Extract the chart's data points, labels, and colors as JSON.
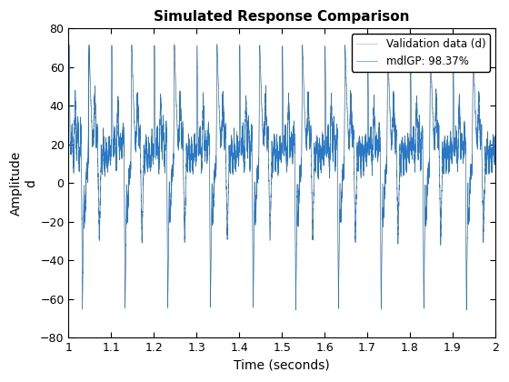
{
  "title": "Simulated Response Comparison",
  "xlabel": "Time (seconds)",
  "ylabel": "Amplitude\nd",
  "xlim": [
    1.0,
    2.0
  ],
  "ylim": [
    -80,
    80
  ],
  "yticks": [
    -80,
    -60,
    -40,
    -20,
    0,
    20,
    40,
    60,
    80
  ],
  "xticks": [
    1.0,
    1.1,
    1.2,
    1.3,
    1.4,
    1.5,
    1.6,
    1.7,
    1.8,
    1.9,
    2.0
  ],
  "validation_color": "#aaaaaa",
  "model_color": "#2878c8",
  "legend_labels": [
    "Validation data (d)",
    "mdlGP: 98.37%"
  ],
  "n_points": 20000,
  "freq_main": 10.0,
  "freq_sub": 150.0,
  "background_color": "#ffffff"
}
